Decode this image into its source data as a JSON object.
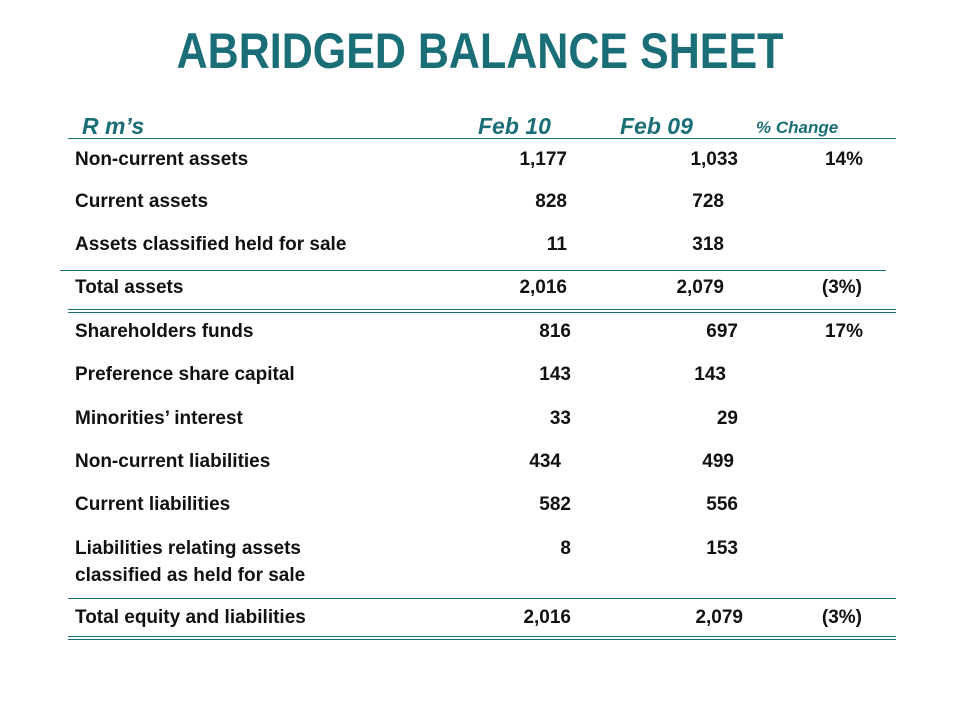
{
  "title": "ABRIDGED BALANCE SHEET",
  "header": {
    "unit": "R m’s",
    "col1": "Feb 10",
    "col2": "Feb 09",
    "col3": "% Change"
  },
  "rows": [
    {
      "label": "Non-current assets",
      "feb10": "1,177",
      "feb09": "1,033",
      "change": "14%"
    },
    {
      "label": "Current assets",
      "feb10": "828",
      "feb09": "728",
      "change": ""
    },
    {
      "label": "Assets classified held for sale",
      "feb10": "11",
      "feb09": "318",
      "change": ""
    },
    {
      "label": "Total assets",
      "feb10": "2,016",
      "feb09": "2,079",
      "change": "(3%)"
    },
    {
      "label": "Shareholders funds",
      "feb10": "816",
      "feb09": "697",
      "change": "17%"
    },
    {
      "label": "Preference share capital",
      "feb10": "143",
      "feb09": "143",
      "change": ""
    },
    {
      "label": "Minorities’ interest",
      "feb10": "33",
      "feb09": "29",
      "change": ""
    },
    {
      "label": "Non-current liabilities",
      "feb10": "434",
      "feb09": "499",
      "change": ""
    },
    {
      "label": "Current liabilities",
      "feb10": "582",
      "feb09": "556",
      "change": ""
    },
    {
      "label": "Liabilities relating assets",
      "label_line2": "classified as held for sale",
      "feb10": "8",
      "feb09": "153",
      "change": ""
    },
    {
      "label": "Total equity and liabilities",
      "feb10": "2,016",
      "feb09": "2,079",
      "change": "(3%)"
    }
  ],
  "colors": {
    "accent": "#1a6e78",
    "text": "#111111"
  }
}
